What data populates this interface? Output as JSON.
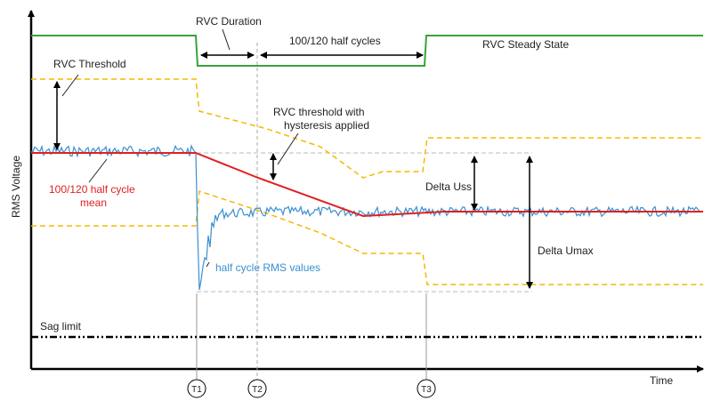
{
  "diagram": {
    "axis": {
      "y_label": "RMS Voltage",
      "x_label": "Time"
    },
    "markers": [
      "T1",
      "T2",
      "T3"
    ],
    "labels": {
      "rvc_duration": "RVC Duration",
      "half_cycles": "100/120 half cycles",
      "steady_state": "RVC Steady State",
      "rvc_threshold": "RVC Threshold",
      "hysteresis_line1": "RVC threshold with",
      "hysteresis_line2": "hysteresis applied",
      "mean_line1": "100/120 half cycle",
      "mean_line2": "mean",
      "delta_uss": "Delta Uss",
      "delta_umax": "Delta Umax",
      "rms_values": "half cycle RMS values",
      "sag_limit": "Sag limit"
    },
    "colors": {
      "green": "#3aa23a",
      "orange": "#f5b800",
      "red": "#e02020",
      "blue": "#3a8fd0",
      "gray": "#bbbbbb"
    }
  }
}
